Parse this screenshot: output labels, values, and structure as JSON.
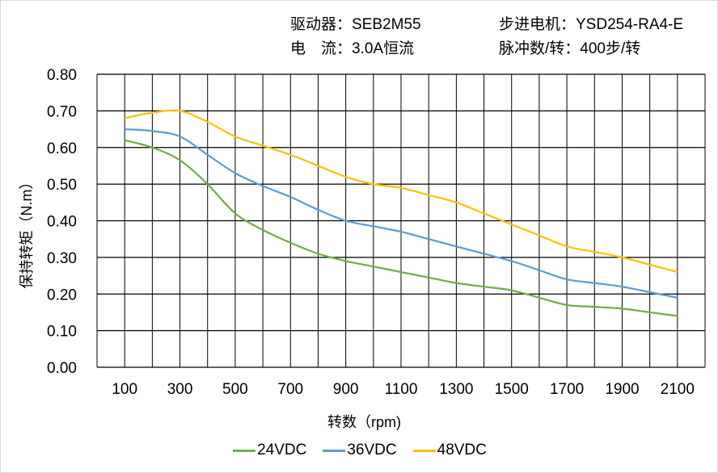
{
  "header": {
    "driver": "驱动器：SEB2M55",
    "motor": "步进电机：YSD254-RA4-E",
    "current": "电　流：3.0A恒流",
    "pulses": "脉冲数/转：400步/转"
  },
  "chart_data": {
    "type": "line",
    "title": "",
    "xlabel": "转数（rpm)",
    "ylabel": "保持转矩（N.m）",
    "xlim": [
      0,
      2200
    ],
    "ylim": [
      0,
      0.8
    ],
    "grid": true,
    "legend_position": "bottom",
    "x_ticks": [
      "100",
      "300",
      "500",
      "700",
      "900",
      "1100",
      "1300",
      "1500",
      "1700",
      "1900",
      "2100"
    ],
    "y_ticks": [
      "0.00",
      "0.10",
      "0.20",
      "0.30",
      "0.40",
      "0.50",
      "0.60",
      "0.70",
      "0.80"
    ],
    "x": [
      100,
      200,
      300,
      400,
      500,
      600,
      700,
      800,
      900,
      1000,
      1100,
      1200,
      1300,
      1400,
      1500,
      1600,
      1700,
      1800,
      1900,
      2000,
      2100
    ],
    "series": [
      {
        "name": "24VDC",
        "color": "#70ad47",
        "values": [
          0.62,
          0.6,
          0.565,
          0.5,
          0.42,
          0.375,
          0.34,
          0.31,
          0.29,
          0.275,
          0.26,
          0.245,
          0.23,
          0.22,
          0.21,
          0.19,
          0.17,
          0.165,
          0.16,
          0.15,
          0.14
        ]
      },
      {
        "name": "36VDC",
        "color": "#5b9bd5",
        "values": [
          0.65,
          0.645,
          0.63,
          0.58,
          0.53,
          0.495,
          0.465,
          0.43,
          0.4,
          0.385,
          0.37,
          0.35,
          0.33,
          0.31,
          0.29,
          0.265,
          0.24,
          0.23,
          0.22,
          0.205,
          0.19
        ]
      },
      {
        "name": "48VDC",
        "color": "#ffc000",
        "values": [
          0.68,
          0.695,
          0.7,
          0.67,
          0.63,
          0.605,
          0.58,
          0.55,
          0.52,
          0.5,
          0.49,
          0.47,
          0.45,
          0.42,
          0.39,
          0.36,
          0.33,
          0.315,
          0.3,
          0.28,
          0.26
        ]
      }
    ]
  }
}
